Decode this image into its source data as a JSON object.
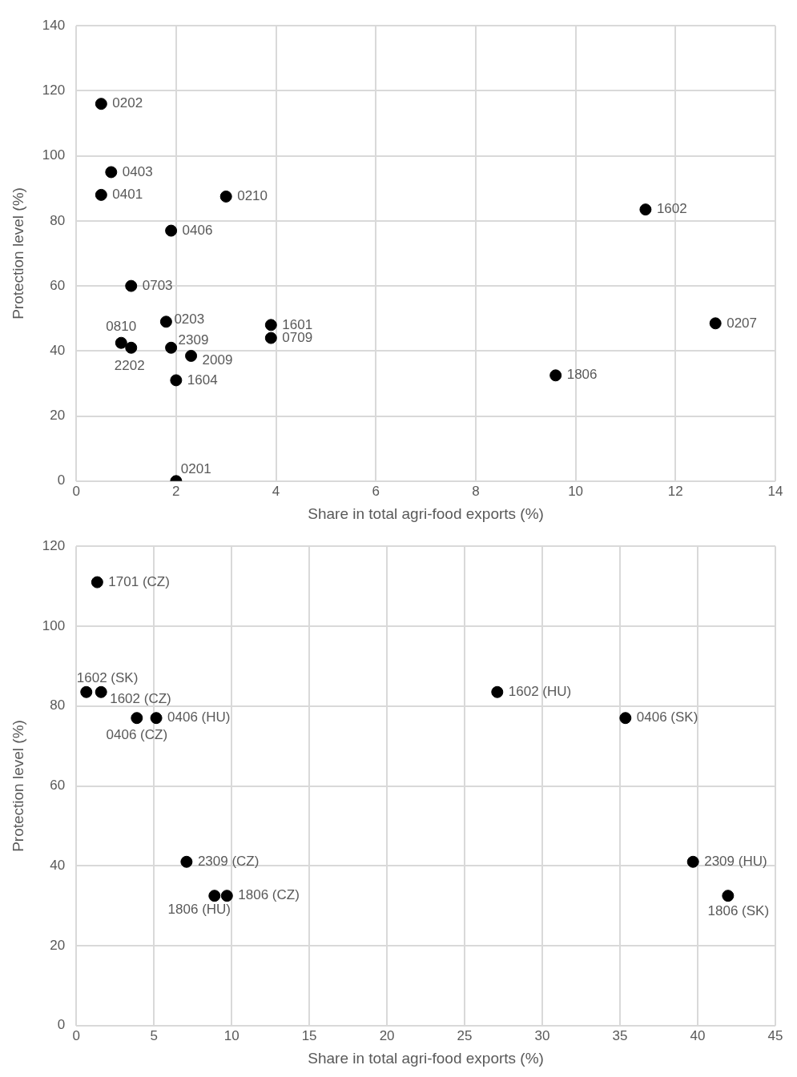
{
  "chart_data": [
    {
      "type": "scatter",
      "xlabel": "Share in total agri-food exports (%)",
      "ylabel": "Protection level (%)",
      "x": [
        0.5,
        0.7,
        0.5,
        3.0,
        11.4,
        1.9,
        1.1,
        1.8,
        3.9,
        3.9,
        12.8,
        0.9,
        1.1,
        1.9,
        2.3,
        2.0,
        9.6,
        2.0
      ],
      "values": [
        116,
        95,
        88,
        87.5,
        83.5,
        77,
        60,
        49,
        48,
        44,
        48.5,
        42.5,
        41,
        41,
        38.5,
        31,
        32.5,
        0
      ],
      "annotations": [
        {
          "text": "0202",
          "x": 0.5,
          "y": 116
        },
        {
          "text": "0403",
          "x": 0.7,
          "y": 95
        },
        {
          "text": "0401",
          "x": 0.5,
          "y": 88
        },
        {
          "text": "0210",
          "x": 3.0,
          "y": 87.5
        },
        {
          "text": "1602",
          "x": 11.4,
          "y": 83.5
        },
        {
          "text": "0406",
          "x": 1.9,
          "y": 77
        },
        {
          "text": "0703",
          "x": 1.1,
          "y": 60
        },
        {
          "text": "0203",
          "x": 1.8,
          "y": 49
        },
        {
          "text": "1601",
          "x": 3.9,
          "y": 48
        },
        {
          "text": "0709",
          "x": 3.9,
          "y": 44
        },
        {
          "text": "0207",
          "x": 12.8,
          "y": 48.5
        },
        {
          "text": "0810",
          "x": 0.9,
          "y": 42.5
        },
        {
          "text": "2202",
          "x": 1.1,
          "y": 41
        },
        {
          "text": "2309",
          "x": 1.9,
          "y": 41
        },
        {
          "text": "2009",
          "x": 2.3,
          "y": 38.5
        },
        {
          "text": "1604",
          "x": 2.0,
          "y": 31
        },
        {
          "text": "1806",
          "x": 9.6,
          "y": 32.5
        },
        {
          "text": "0201",
          "x": 2.0,
          "y": 0
        }
      ],
      "color": "#000000",
      "marker": "circle",
      "grid": true,
      "xlim": [
        0,
        14
      ],
      "xticks": [
        0,
        2,
        4,
        6,
        8,
        10,
        12,
        14
      ],
      "ylim": [
        0,
        140
      ],
      "yticks": [
        0,
        20,
        40,
        60,
        80,
        100,
        120,
        140
      ]
    },
    {
      "type": "scatter",
      "xlabel": "Share in total agri-food exports (%)",
      "ylabel": "Protection level (%)",
      "x": [
        1.35,
        0.65,
        1.6,
        3.9,
        5.15,
        27.1,
        35.35,
        7.1,
        8.9,
        9.7,
        39.7,
        41.95
      ],
      "values": [
        111,
        83.5,
        83.5,
        77,
        77,
        83.5,
        77,
        41,
        32.5,
        32.5,
        41,
        32.5
      ],
      "annotations": [
        {
          "text": "1701 (CZ)",
          "x": 1.35,
          "y": 111
        },
        {
          "text": "1602 (SK)",
          "x": 0.65,
          "y": 83.5
        },
        {
          "text": "1602 (CZ)",
          "x": 1.6,
          "y": 83.5
        },
        {
          "text": "0406 (CZ)",
          "x": 3.9,
          "y": 77
        },
        {
          "text": "0406 (HU)",
          "x": 5.15,
          "y": 77
        },
        {
          "text": "1602 (HU)",
          "x": 27.1,
          "y": 83.5
        },
        {
          "text": "0406 (SK)",
          "x": 35.35,
          "y": 77
        },
        {
          "text": "2309 (CZ)",
          "x": 7.1,
          "y": 41
        },
        {
          "text": "1806 (HU)",
          "x": 8.9,
          "y": 32.5
        },
        {
          "text": "1806 (CZ)",
          "x": 9.7,
          "y": 32.5
        },
        {
          "text": "2309 (HU)",
          "x": 39.7,
          "y": 41
        },
        {
          "text": "1806 (SK)",
          "x": 41.95,
          "y": 32.5
        }
      ],
      "color": "#000000",
      "marker": "circle",
      "grid": true,
      "xlim": [
        0,
        45
      ],
      "xticks": [
        0,
        5,
        10,
        15,
        20,
        25,
        30,
        35,
        40,
        45
      ],
      "ylim": [
        0,
        120
      ],
      "yticks": [
        0,
        20,
        40,
        60,
        80,
        100,
        120
      ]
    }
  ]
}
